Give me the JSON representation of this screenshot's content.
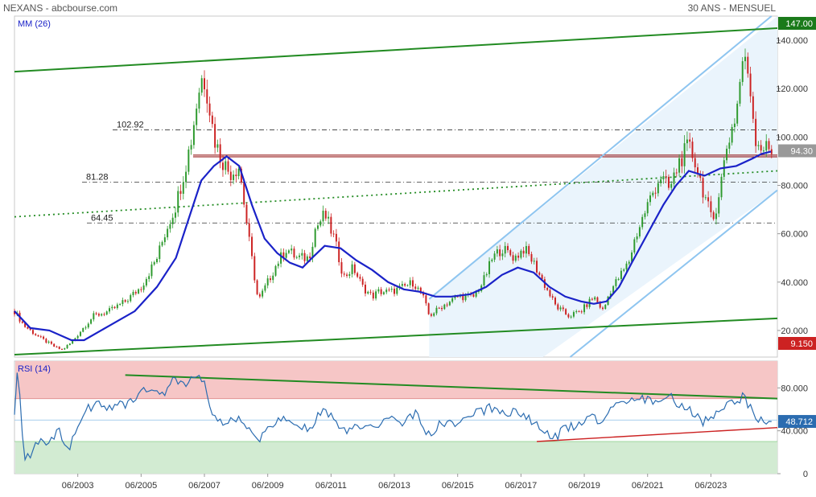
{
  "header": {
    "title": "NEXANS - abcbourse.com",
    "period": "30 ANS - MENSUEL"
  },
  "indicators": {
    "ma_label": "MM (26)",
    "rsi_label": "RSI (14)"
  },
  "colors": {
    "bull": "#2e9a2e",
    "bear": "#cc2222",
    "ma": "#1a22c8",
    "trend": "#228b22",
    "channel": "#8ec5f0",
    "channel_fill": "#eaf4fc",
    "rsi": "#2b6cb0",
    "rsi_over": "#f6c6c6",
    "rsi_under": "#d2ebd2",
    "level": "#333333",
    "hline": "#8b0000",
    "current_tag": "#999999",
    "min_tag": "#cc2222",
    "max_tag": "#1a7a1a"
  },
  "chart_data": [
    {
      "type": "candlestick",
      "title": "NEXANS",
      "x_range": [
        2001.5,
        2025.6
      ],
      "y_range": [
        9,
        150
      ],
      "y_ticks": [
        20,
        40,
        60,
        80,
        100,
        120,
        140
      ],
      "y_tick_labels": [
        "20.000",
        "40.000",
        "60.000",
        "80.000",
        "100.000",
        "120.000",
        "140.000"
      ],
      "x_ticks": [
        2003.5,
        2005.5,
        2007.5,
        2009.5,
        2011.5,
        2013.5,
        2015.5,
        2017.5,
        2019.5,
        2021.5,
        2023.5
      ],
      "x_tick_labels": [
        "06/2003",
        "06/2005",
        "06/2007",
        "06/2009",
        "06/2011",
        "06/2013",
        "06/2015",
        "06/2017",
        "06/2019",
        "06/2021",
        "06/2023"
      ],
      "close_anchors": [
        [
          2001.5,
          28
        ],
        [
          2001.8,
          22
        ],
        [
          2002.3,
          17
        ],
        [
          2002.8,
          13
        ],
        [
          2003.0,
          12
        ],
        [
          2003.3,
          15
        ],
        [
          2003.6,
          20
        ],
        [
          2004.0,
          26
        ],
        [
          2004.5,
          28
        ],
        [
          2005.0,
          32
        ],
        [
          2005.5,
          38
        ],
        [
          2006.0,
          50
        ],
        [
          2006.3,
          62
        ],
        [
          2006.6,
          72
        ],
        [
          2006.9,
          88
        ],
        [
          2007.1,
          100
        ],
        [
          2007.3,
          118
        ],
        [
          2007.45,
          126
        ],
        [
          2007.6,
          118
        ],
        [
          2007.8,
          100
        ],
        [
          2008.0,
          92
        ],
        [
          2008.3,
          85
        ],
        [
          2008.6,
          88
        ],
        [
          2008.9,
          58
        ],
        [
          2009.2,
          32
        ],
        [
          2009.5,
          40
        ],
        [
          2009.8,
          48
        ],
        [
          2010.1,
          54
        ],
        [
          2010.4,
          50
        ],
        [
          2010.8,
          50
        ],
        [
          2011.0,
          62
        ],
        [
          2011.3,
          68
        ],
        [
          2011.6,
          58
        ],
        [
          2011.9,
          42
        ],
        [
          2012.2,
          46
        ],
        [
          2012.5,
          38
        ],
        [
          2012.8,
          34
        ],
        [
          2013.0,
          36
        ],
        [
          2013.4,
          36
        ],
        [
          2013.8,
          38
        ],
        [
          2014.1,
          40
        ],
        [
          2014.4,
          34
        ],
        [
          2014.6,
          26
        ],
        [
          2015.0,
          30
        ],
        [
          2015.5,
          34
        ],
        [
          2016.0,
          34
        ],
        [
          2016.3,
          40
        ],
        [
          2016.6,
          50
        ],
        [
          2016.9,
          54
        ],
        [
          2017.3,
          50
        ],
        [
          2017.6,
          54
        ],
        [
          2017.9,
          48
        ],
        [
          2018.2,
          40
        ],
        [
          2018.6,
          30
        ],
        [
          2019.0,
          26
        ],
        [
          2019.4,
          28
        ],
        [
          2019.8,
          34
        ],
        [
          2020.1,
          28
        ],
        [
          2020.3,
          36
        ],
        [
          2020.6,
          42
        ],
        [
          2020.9,
          48
        ],
        [
          2021.1,
          58
        ],
        [
          2021.5,
          72
        ],
        [
          2021.9,
          84
        ],
        [
          2022.2,
          78
        ],
        [
          2022.5,
          90
        ],
        [
          2022.8,
          96
        ],
        [
          2023.0,
          90
        ],
        [
          2023.3,
          76
        ],
        [
          2023.55,
          64
        ],
        [
          2023.8,
          80
        ],
        [
          2024.0,
          96
        ],
        [
          2024.3,
          110
        ],
        [
          2024.5,
          132
        ],
        [
          2024.7,
          126
        ],
        [
          2024.9,
          100
        ],
        [
          2025.1,
          96
        ],
        [
          2025.4,
          94.3
        ]
      ],
      "moving_average": {
        "name": "MM (26)",
        "points": [
          [
            2001.5,
            28
          ],
          [
            2002.0,
            21
          ],
          [
            2002.6,
            20
          ],
          [
            2003.3,
            16
          ],
          [
            2003.7,
            16
          ],
          [
            2004.5,
            22
          ],
          [
            2005.3,
            28
          ],
          [
            2006.0,
            38
          ],
          [
            2006.6,
            50
          ],
          [
            2007.0,
            66
          ],
          [
            2007.4,
            82
          ],
          [
            2007.8,
            88
          ],
          [
            2008.2,
            92
          ],
          [
            2008.6,
            88
          ],
          [
            2009.0,
            72
          ],
          [
            2009.4,
            58
          ],
          [
            2009.8,
            52
          ],
          [
            2010.2,
            48
          ],
          [
            2010.6,
            46
          ],
          [
            2010.9,
            50
          ],
          [
            2011.3,
            55
          ],
          [
            2011.8,
            54
          ],
          [
            2012.3,
            49
          ],
          [
            2012.8,
            45
          ],
          [
            2013.3,
            40
          ],
          [
            2013.8,
            37
          ],
          [
            2014.3,
            36
          ],
          [
            2014.8,
            34
          ],
          [
            2015.3,
            34
          ],
          [
            2015.9,
            35
          ],
          [
            2016.4,
            38
          ],
          [
            2016.9,
            43
          ],
          [
            2017.4,
            46
          ],
          [
            2017.9,
            44
          ],
          [
            2018.4,
            38
          ],
          [
            2018.9,
            34
          ],
          [
            2019.4,
            32
          ],
          [
            2019.8,
            31
          ],
          [
            2020.2,
            32
          ],
          [
            2020.6,
            38
          ],
          [
            2021.0,
            48
          ],
          [
            2021.5,
            60
          ],
          [
            2022.0,
            72
          ],
          [
            2022.4,
            80
          ],
          [
            2022.8,
            86
          ],
          [
            2023.3,
            84
          ],
          [
            2023.8,
            87
          ],
          [
            2024.3,
            88
          ],
          [
            2024.8,
            91
          ],
          [
            2025.1,
            93
          ],
          [
            2025.4,
            94
          ]
        ]
      },
      "levels": [
        {
          "label": "102.92",
          "value": 102.92
        },
        {
          "label": "81.28",
          "value": 81.28
        },
        {
          "label": "64.45",
          "value": 64.45
        }
      ],
      "horizontal_lines": [
        92.5,
        91.8
      ],
      "trend_lines": {
        "upper": [
          [
            2001.5,
            127
          ],
          [
            2025.6,
            145
          ]
        ],
        "lower": [
          [
            2001.5,
            10
          ],
          [
            2025.6,
            25
          ]
        ],
        "dotted": [
          [
            2001.5,
            67
          ],
          [
            2025.6,
            86
          ]
        ]
      },
      "channel": {
        "upper": [
          [
            2014.6,
            33
          ],
          [
            2025.6,
            152
          ]
        ],
        "lower": [
          [
            2018.2,
            0
          ],
          [
            2025.6,
            78
          ]
        ],
        "shade_from_x": 2014.6
      },
      "price_tags": {
        "max": "147.00",
        "current": "94.30",
        "min": "9.150"
      }
    },
    {
      "type": "line",
      "title": "RSI (14)",
      "x_range": [
        2001.5,
        2025.6
      ],
      "y_range": [
        0,
        105
      ],
      "y_ticks": [
        0,
        40,
        80
      ],
      "y_tick_labels": [
        "0",
        "40.000",
        "80.000"
      ],
      "overbought": 70,
      "oversold": 30,
      "mid": 50,
      "rsi_anchors": [
        [
          2001.5,
          55
        ],
        [
          2001.6,
          102
        ],
        [
          2001.7,
          60
        ],
        [
          2001.8,
          12
        ],
        [
          2002.0,
          18
        ],
        [
          2002.3,
          32
        ],
        [
          2002.6,
          28
        ],
        [
          2002.9,
          40
        ],
        [
          2003.2,
          22
        ],
        [
          2003.5,
          45
        ],
        [
          2003.8,
          60
        ],
        [
          2004.1,
          65
        ],
        [
          2004.5,
          62
        ],
        [
          2004.9,
          64
        ],
        [
          2005.3,
          70
        ],
        [
          2005.7,
          80
        ],
        [
          2006.1,
          72
        ],
        [
          2006.5,
          86
        ],
        [
          2006.8,
          82
        ],
        [
          2007.2,
          92
        ],
        [
          2007.5,
          84
        ],
        [
          2007.8,
          50
        ],
        [
          2008.2,
          48
        ],
        [
          2008.6,
          52
        ],
        [
          2008.9,
          40
        ],
        [
          2009.2,
          30
        ],
        [
          2009.6,
          45
        ],
        [
          2010.0,
          50
        ],
        [
          2010.4,
          46
        ],
        [
          2010.8,
          42
        ],
        [
          2011.2,
          58
        ],
        [
          2011.6,
          52
        ],
        [
          2011.9,
          38
        ],
        [
          2012.3,
          48
        ],
        [
          2012.7,
          42
        ],
        [
          2013.0,
          44
        ],
        [
          2013.4,
          52
        ],
        [
          2013.8,
          48
        ],
        [
          2014.2,
          56
        ],
        [
          2014.6,
          35
        ],
        [
          2015.0,
          48
        ],
        [
          2015.4,
          44
        ],
        [
          2015.8,
          52
        ],
        [
          2016.2,
          58
        ],
        [
          2016.6,
          62
        ],
        [
          2017.0,
          55
        ],
        [
          2017.4,
          60
        ],
        [
          2017.8,
          50
        ],
        [
          2018.2,
          40
        ],
        [
          2018.6,
          34
        ],
        [
          2018.9,
          42
        ],
        [
          2019.3,
          46
        ],
        [
          2019.7,
          58
        ],
        [
          2020.0,
          44
        ],
        [
          2020.3,
          62
        ],
        [
          2020.7,
          64
        ],
        [
          2021.1,
          68
        ],
        [
          2021.5,
          70
        ],
        [
          2021.9,
          66
        ],
        [
          2022.2,
          72
        ],
        [
          2022.6,
          62
        ],
        [
          2022.9,
          58
        ],
        [
          2023.2,
          48
        ],
        [
          2023.5,
          54
        ],
        [
          2023.8,
          60
        ],
        [
          2024.1,
          64
        ],
        [
          2024.5,
          72
        ],
        [
          2024.8,
          58
        ],
        [
          2025.1,
          49
        ],
        [
          2025.4,
          48.712
        ]
      ],
      "trend_lines": {
        "resistance": [
          [
            2005.0,
            92
          ],
          [
            2025.6,
            70
          ]
        ],
        "support": [
          [
            2018.0,
            30
          ],
          [
            2025.6,
            43
          ]
        ]
      },
      "value_tag": "48.712"
    }
  ]
}
